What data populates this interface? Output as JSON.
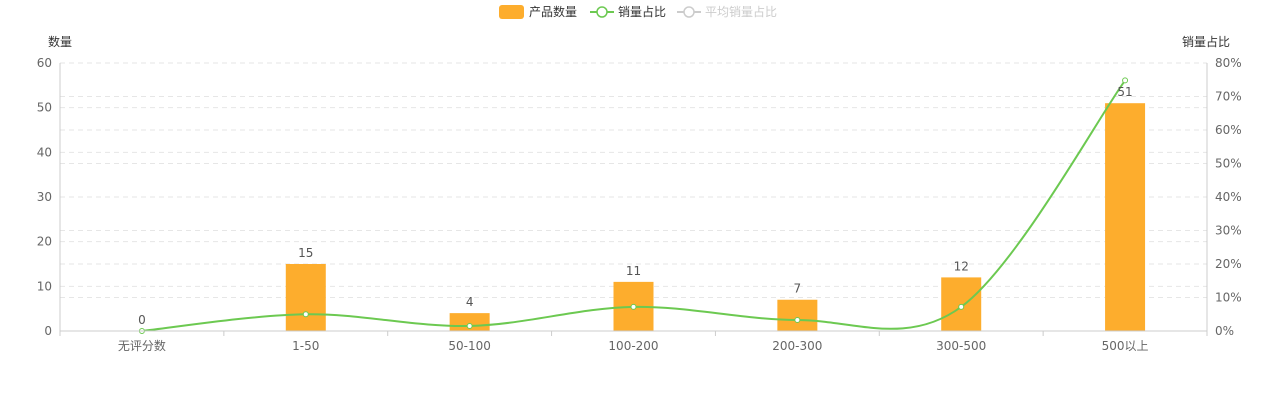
{
  "legend": {
    "bar_label": "产品数量",
    "line_label": "销量占比",
    "avg_label": "平均销量占比",
    "avg_active": false
  },
  "colors": {
    "bar": "#FDAD2D",
    "line": "#6CC951",
    "inactive": "#CCCCCC",
    "grid": "#E6E6E6",
    "axis": "#CCCCCC",
    "text": "#666666"
  },
  "chart_data": {
    "type": "bar",
    "categories": [
      "无评分数",
      "1-50",
      "50-100",
      "100-200",
      "200-300",
      "300-500",
      "500以上"
    ],
    "series": [
      {
        "name": "产品数量",
        "type": "bar",
        "axis": "left",
        "values": [
          0,
          15,
          4,
          11,
          7,
          12,
          51
        ]
      },
      {
        "name": "销量占比",
        "type": "line",
        "smooth": true,
        "axis": "right",
        "values": [
          0,
          5,
          1.5,
          7.2,
          3.3,
          7.2,
          74.8
        ]
      }
    ],
    "y_left": {
      "label": "数量",
      "ylim": [
        0,
        60
      ],
      "ticks": [
        0,
        10,
        20,
        30,
        40,
        50,
        60
      ]
    },
    "y_right": {
      "label": "销量占比",
      "ylim": [
        0,
        80
      ],
      "ticks": [
        "0%",
        "10%",
        "20%",
        "30%",
        "40%",
        "50%",
        "60%",
        "70%",
        "80%"
      ]
    },
    "grid": true,
    "legend_position": "top-center"
  }
}
